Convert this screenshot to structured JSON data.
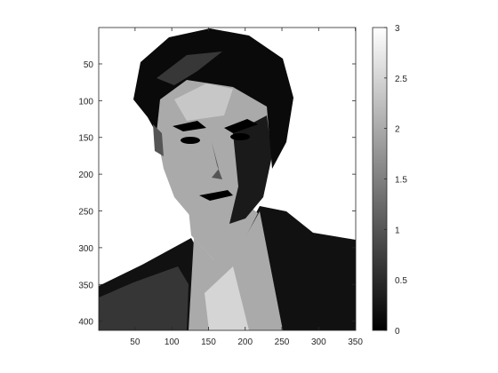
{
  "chart_data": [
    {
      "type": "heatmap",
      "title": "",
      "xlabel": "",
      "ylabel": "",
      "xlim": [
        1,
        350
      ],
      "ylim": [
        1,
        412
      ],
      "y_reversed": true,
      "x_ticks": [
        50,
        100,
        150,
        200,
        250,
        300,
        350
      ],
      "y_ticks": [
        50,
        100,
        150,
        200,
        250,
        300,
        350,
        400
      ],
      "levels": [
        0,
        1,
        2,
        3
      ],
      "colormap": "gray",
      "colors": {
        "level_0": "#000000",
        "level_1": "#555555",
        "level_2": "#aaaaaa",
        "level_3": "#ffffff"
      },
      "grid": false,
      "content": "quantized grayscale portrait, 4 intensity levels"
    },
    {
      "type": "colorbar",
      "range": [
        0,
        3
      ],
      "ticks": [
        "0",
        "0.5",
        "1",
        "1.5",
        "2",
        "2.5",
        "3"
      ],
      "colormap": "gray"
    }
  ]
}
